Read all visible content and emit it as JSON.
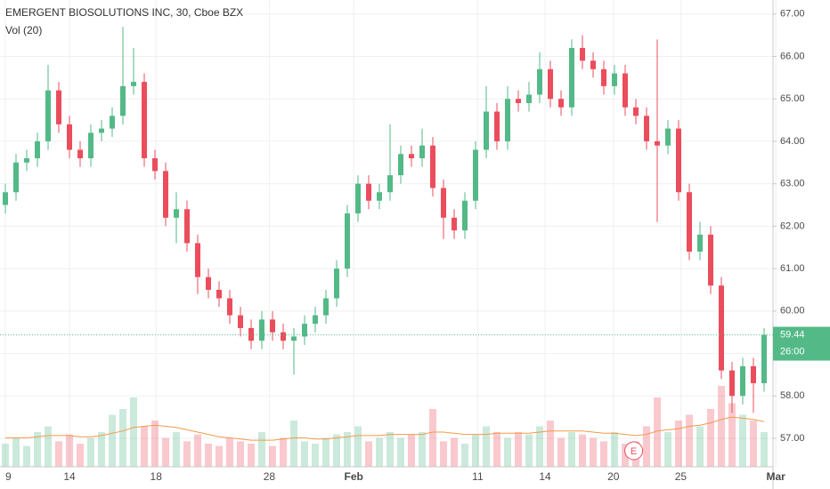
{
  "chart_data": {
    "type": "candlestick",
    "title": "EMERGENT BIOSOLUTIONS INC, 30, Cboe BZX",
    "subtitle": "Vol (20)",
    "up_color": "#53b987",
    "down_color": "#eb4d5c",
    "ma_color": "#f39a4b",
    "ylim": [
      56.33,
      67.33
    ],
    "yticks": [
      {
        "value": 57,
        "label": "57.00"
      },
      {
        "value": 58,
        "label": "58.00"
      },
      {
        "value": 59,
        "label": "59.00"
      },
      {
        "value": 60,
        "label": "60.00"
      },
      {
        "value": 61,
        "label": "61.00"
      },
      {
        "value": 62,
        "label": "62.00"
      },
      {
        "value": 63,
        "label": "63.00"
      },
      {
        "value": 64,
        "label": "64.00"
      },
      {
        "value": 65,
        "label": "65.00"
      },
      {
        "value": 66,
        "label": "66.00"
      },
      {
        "value": 67,
        "label": "67.00"
      }
    ],
    "xticks": [
      {
        "value": 0,
        "label": "9"
      },
      {
        "value": 6,
        "label": "14"
      },
      {
        "value": 14.1,
        "label": "18"
      },
      {
        "value": 24.7,
        "label": "28"
      },
      {
        "value": 32.6,
        "label": "Feb"
      },
      {
        "value": 44.2,
        "label": "11"
      },
      {
        "value": 50.5,
        "label": "14"
      },
      {
        "value": 56.9,
        "label": "20"
      },
      {
        "value": 63.2,
        "label": "25"
      },
      {
        "value": 72.1,
        "label": "Mar"
      }
    ],
    "grid": true,
    "open": [
      62.5,
      62.8,
      63.5,
      63.6,
      64.0,
      65.2,
      64.4,
      63.8,
      63.6,
      64.2,
      64.3,
      64.6,
      65.3,
      65.4,
      63.6,
      63.3,
      62.2,
      62.4,
      61.6,
      60.8,
      60.5,
      60.3,
      59.9,
      59.6,
      59.3,
      59.8,
      59.5,
      59.3,
      59.4,
      59.7,
      59.9,
      60.3,
      61.0,
      62.3,
      63.0,
      62.6,
      62.8,
      63.2,
      63.7,
      63.6,
      63.9,
      62.9,
      62.2,
      61.9,
      62.6,
      63.8,
      64.7,
      64.0,
      65.0,
      64.9,
      65.1,
      65.7,
      65.0,
      64.8,
      66.2,
      65.9,
      65.7,
      65.3,
      65.6,
      64.8,
      64.6,
      64.0,
      63.9,
      64.3,
      62.8,
      61.4,
      61.8,
      60.6,
      58.6,
      58.0,
      58.7,
      58.3
    ],
    "high": [
      63.0,
      63.7,
      63.8,
      64.2,
      65.8,
      65.4,
      64.6,
      64.0,
      64.4,
      64.5,
      64.8,
      66.7,
      66.2,
      65.6,
      63.8,
      63.5,
      62.8,
      62.6,
      61.8,
      61.0,
      60.7,
      60.5,
      60.1,
      59.8,
      60.0,
      60.0,
      59.7,
      59.6,
      59.9,
      60.1,
      60.5,
      61.2,
      62.5,
      63.2,
      63.2,
      63.0,
      64.4,
      63.9,
      63.9,
      64.3,
      64.1,
      63.1,
      62.4,
      62.8,
      64.0,
      65.3,
      64.9,
      65.3,
      65.2,
      65.4,
      66.1,
      65.9,
      65.2,
      66.4,
      66.5,
      66.1,
      65.9,
      65.8,
      65.8,
      65.0,
      64.8,
      66.4,
      64.5,
      64.5,
      63.0,
      62.1,
      62.0,
      60.8,
      58.8,
      58.9,
      58.9,
      59.6
    ],
    "low": [
      62.3,
      62.6,
      63.3,
      63.4,
      63.8,
      64.2,
      63.6,
      63.4,
      63.4,
      64.0,
      64.1,
      64.4,
      65.1,
      63.4,
      63.1,
      62.0,
      61.6,
      61.4,
      60.4,
      60.3,
      60.1,
      59.7,
      59.4,
      59.1,
      59.1,
      59.3,
      59.1,
      58.5,
      59.2,
      59.5,
      59.7,
      60.1,
      60.8,
      62.1,
      62.4,
      62.4,
      62.6,
      63.0,
      63.4,
      63.4,
      62.7,
      61.7,
      61.7,
      61.7,
      62.4,
      63.6,
      63.8,
      63.8,
      64.7,
      64.7,
      64.9,
      64.8,
      64.6,
      64.6,
      65.7,
      65.5,
      65.1,
      65.1,
      64.6,
      64.4,
      63.8,
      62.1,
      63.7,
      62.6,
      61.2,
      61.2,
      60.4,
      58.4,
      57.6,
      57.8,
      57.6,
      58.1
    ],
    "close": [
      62.8,
      63.5,
      63.6,
      64.0,
      65.2,
      64.4,
      63.8,
      63.6,
      64.2,
      64.3,
      64.6,
      65.3,
      65.4,
      63.6,
      63.3,
      62.2,
      62.4,
      61.6,
      60.8,
      60.5,
      60.3,
      59.9,
      59.6,
      59.3,
      59.8,
      59.5,
      59.3,
      59.4,
      59.7,
      59.9,
      60.3,
      61.0,
      62.3,
      63.0,
      62.6,
      62.8,
      63.2,
      63.7,
      63.6,
      63.9,
      62.9,
      62.2,
      61.9,
      62.6,
      63.8,
      64.7,
      64.0,
      65.0,
      64.9,
      65.1,
      65.7,
      65.0,
      64.8,
      66.2,
      65.9,
      65.7,
      65.3,
      65.6,
      64.8,
      64.6,
      64.0,
      63.9,
      64.3,
      62.8,
      61.4,
      61.8,
      60.6,
      58.6,
      58.0,
      58.7,
      58.3,
      59.44
    ],
    "volume_lim": [
      0,
      100
    ],
    "volume": [
      20,
      25,
      18,
      30,
      35,
      22,
      28,
      20,
      25,
      30,
      45,
      50,
      60,
      35,
      40,
      25,
      30,
      22,
      28,
      20,
      18,
      25,
      22,
      20,
      30,
      18,
      25,
      40,
      22,
      20,
      25,
      28,
      30,
      35,
      22,
      25,
      30,
      25,
      28,
      30,
      50,
      22,
      25,
      20,
      28,
      35,
      30,
      25,
      30,
      28,
      35,
      40,
      25,
      30,
      28,
      25,
      22,
      30,
      20,
      22,
      35,
      60,
      30,
      40,
      45,
      35,
      50,
      70,
      55,
      45,
      40,
      30
    ],
    "volume_ma": [
      25,
      25,
      25,
      26,
      27,
      27,
      27,
      26,
      26,
      27,
      29,
      31,
      34,
      35,
      36,
      35,
      34,
      32,
      30,
      28,
      26,
      25,
      24,
      23,
      23,
      23,
      24,
      25,
      25,
      24,
      24,
      25,
      26,
      27,
      27,
      27,
      28,
      28,
      28,
      28,
      30,
      30,
      29,
      28,
      28,
      28,
      29,
      29,
      29,
      29,
      30,
      31,
      31,
      31,
      31,
      30,
      29,
      29,
      28,
      27,
      28,
      31,
      32,
      33,
      35,
      36,
      38,
      41,
      43,
      42,
      41,
      39
    ],
    "last_price": 59.44,
    "countdown": "26:00",
    "earnings_marker": {
      "label": "E",
      "index": 58.8
    }
  }
}
